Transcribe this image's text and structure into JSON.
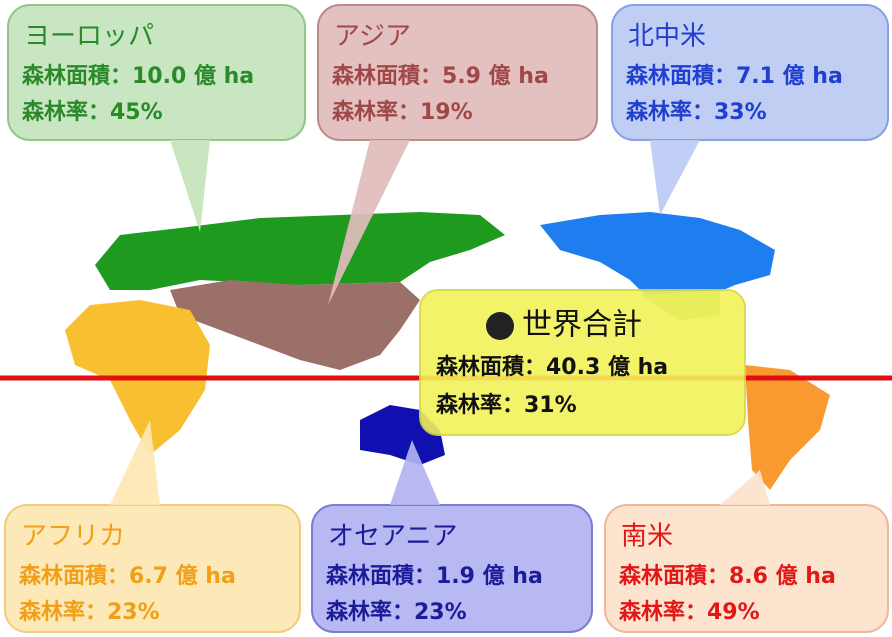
{
  "regions": [
    {
      "name": "ヨーロッパ",
      "area": "森林面積：10.0 億 ha",
      "rate": "森林率：45%"
    },
    {
      "name": "アジア",
      "area": "森林面積：5.9 億 ha",
      "rate": "森林率：19%"
    },
    {
      "name": "北中米",
      "area": "森林面積：7.1 億 ha",
      "rate": "森林率：33%"
    },
    {
      "name": "アフリカ",
      "area": "森林面積：6.7 億 ha",
      "rate": "森林率：23%"
    },
    {
      "name": "オセアニア",
      "area": "森林面積：1.9 億 ha",
      "rate": "森林率：23%"
    },
    {
      "name": "南米",
      "area": "森林面積：8.6 億 ha",
      "rate": "森林率：49%"
    }
  ],
  "world": {
    "title": "世界合計",
    "area": "森林面積：40.3 億 ha",
    "rate": "森林率：31%"
  }
}
